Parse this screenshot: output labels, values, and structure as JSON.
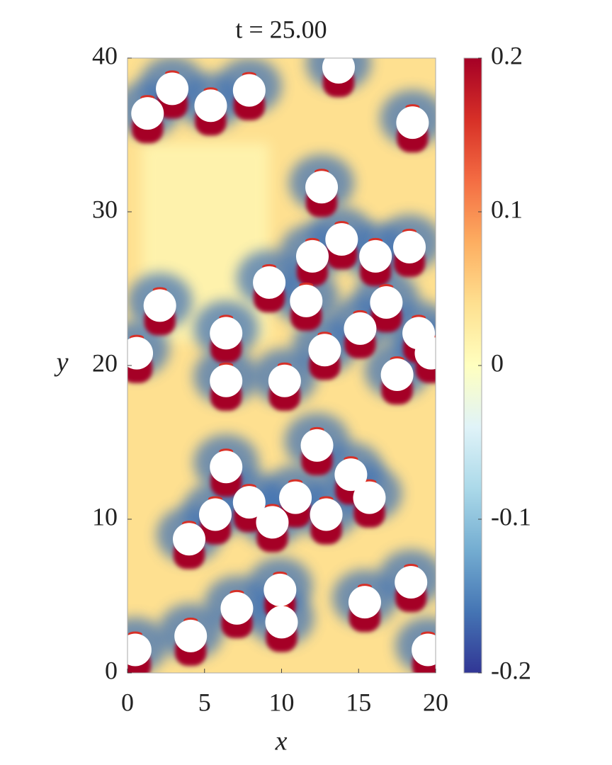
{
  "chart_data": {
    "type": "scatter",
    "title": "t = 25.00",
    "x_label": "x",
    "y_label": "y",
    "xlim": [
      0,
      20
    ],
    "xticks": [
      0,
      5,
      10,
      15,
      20
    ],
    "ylim": [
      0,
      40
    ],
    "yticks": [
      0,
      10,
      20,
      30,
      40
    ],
    "series": [
      {
        "color": "#ffffff",
        "x": [
          13.7,
          2.9,
          1.3,
          5.4,
          7.9,
          18.5,
          12.6,
          13.9,
          12.0,
          16.1,
          18.3,
          9.2,
          2.1,
          11.6,
          16.8,
          15.1,
          18.9,
          6.4,
          12.8,
          0.6,
          19.7,
          6.4,
          10.2,
          17.5,
          12.3,
          6.4,
          14.5,
          15.7,
          7.9,
          10.9,
          5.7,
          12.9,
          9.4,
          4.0,
          9.9,
          18.4,
          7.1,
          15.4,
          10.0,
          4.1,
          19.5,
          0.5
        ],
        "values": [
          39.4,
          38.0,
          36.4,
          36.9,
          37.9,
          35.8,
          31.6,
          28.2,
          27.1,
          27.1,
          27.7,
          25.4,
          23.9,
          24.2,
          24.1,
          22.4,
          22.1,
          22.1,
          21.0,
          20.8,
          20.8,
          19.0,
          19.0,
          19.4,
          14.8,
          13.4,
          12.9,
          11.4,
          11.1,
          11.4,
          10.3,
          10.3,
          9.8,
          8.7,
          5.4,
          5.9,
          4.2,
          4.6,
          3.3,
          2.4,
          1.5,
          1.5
        ]
      }
    ],
    "colorbar": {
      "lim": [
        -0.2,
        0.2
      ],
      "ticks": [
        -0.2,
        -0.1,
        0,
        0.1,
        0.2
      ],
      "colors": [
        "#313695",
        "#4575b4",
        "#74add1",
        "#abd9e9",
        "#e0f3f8",
        "#ffffbf",
        "#fee090",
        "#fdae61",
        "#f46d43",
        "#d73027",
        "#a50026"
      ]
    }
  }
}
